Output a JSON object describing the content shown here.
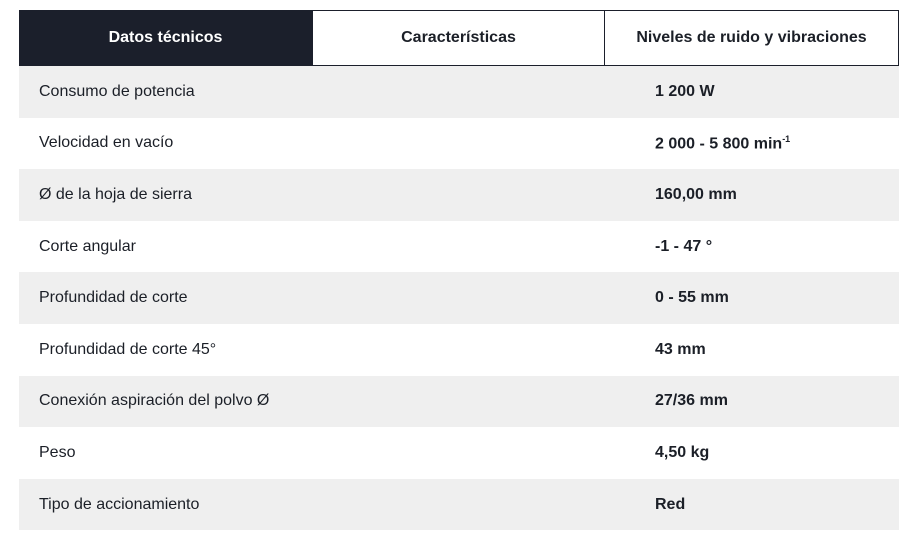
{
  "tabs": [
    {
      "label": "Datos técnicos",
      "active": true
    },
    {
      "label": "Características",
      "active": false
    },
    {
      "label": "Niveles de ruido y vibraciones",
      "active": false
    }
  ],
  "rows": [
    {
      "label": "Consumo de potencia",
      "value": "1 200 W"
    },
    {
      "label": "Velocidad en vacío",
      "value": "2 000 - 5 800 min",
      "sup": "-1"
    },
    {
      "label": "Ø de la hoja de sierra",
      "value": "160,00 mm"
    },
    {
      "label": "Corte angular",
      "value": "-1 - 47 °"
    },
    {
      "label": "Profundidad de corte",
      "value": "0 - 55 mm"
    },
    {
      "label": "Profundidad de corte 45°",
      "value": "43 mm"
    },
    {
      "label": "Conexión aspiración del polvo Ø",
      "value": "27/36 mm"
    },
    {
      "label": "Peso",
      "value": "4,50 kg"
    },
    {
      "label": "Tipo de accionamiento",
      "value": "Red"
    }
  ],
  "colors": {
    "active_tab_bg": "#1b1f2b",
    "row_alt_bg": "#efefef"
  }
}
